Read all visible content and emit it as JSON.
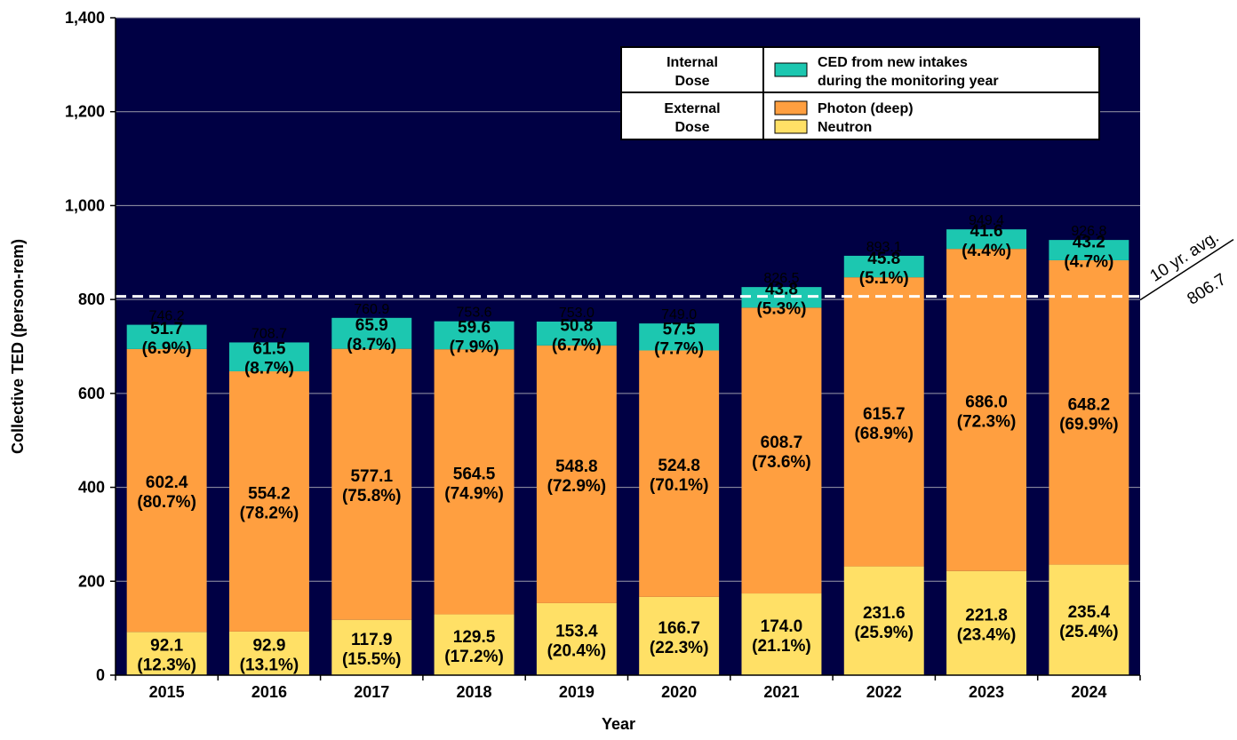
{
  "chart_data": {
    "type": "bar",
    "stacked": true,
    "title": "",
    "xlabel": "Year",
    "ylabel": "Collective TED (person-rem)",
    "ylim": [
      0,
      1400
    ],
    "yticks": [
      "0",
      "200",
      "400",
      "600",
      "800",
      "1,000",
      "1,200",
      "1,400"
    ],
    "ytick_values": [
      0,
      200,
      400,
      600,
      800,
      1000,
      1200,
      1400
    ],
    "grid": true,
    "legend_position": "top-right",
    "categories": [
      "2015",
      "2016",
      "2017",
      "2018",
      "2019",
      "2020",
      "2021",
      "2022",
      "2023",
      "2024"
    ],
    "series": [
      {
        "name": "Neutron",
        "color": "#ffe066",
        "values": [
          92.1,
          92.9,
          117.9,
          129.5,
          153.4,
          166.7,
          174.0,
          231.6,
          221.8,
          235.4
        ],
        "value_labels": [
          "92.1",
          "92.9",
          "117.9",
          "129.5",
          "153.4",
          "166.7",
          "174.0",
          "231.6",
          "221.8",
          "235.4"
        ],
        "percent_labels": [
          "(12.3%)",
          "(13.1%)",
          "(15.5%)",
          "(17.2%)",
          "(20.4%)",
          "(22.3%)",
          "(21.1%)",
          "(25.9%)",
          "(23.4%)",
          "(25.4%)"
        ]
      },
      {
        "name": "Photon (deep)",
        "color": "#ff9f40",
        "values": [
          602.4,
          554.2,
          577.1,
          564.5,
          548.8,
          524.8,
          608.7,
          615.7,
          686.0,
          648.2
        ],
        "value_labels": [
          "602.4",
          "554.2",
          "577.1",
          "564.5",
          "548.8",
          "524.8",
          "608.7",
          "615.7",
          "686.0",
          "648.2"
        ],
        "percent_labels": [
          "(80.7%)",
          "(78.2%)",
          "(75.8%)",
          "(74.9%)",
          "(72.9%)",
          "(70.1%)",
          "(73.6%)",
          "(68.9%)",
          "(72.3%)",
          "(69.9%)"
        ]
      },
      {
        "name": "CED from new intakes during the monitoring year",
        "color": "#1cc7b0",
        "values": [
          51.7,
          61.5,
          65.9,
          59.6,
          50.8,
          57.5,
          43.8,
          45.8,
          41.6,
          43.2
        ],
        "value_labels": [
          "51.7",
          "61.5",
          "65.9",
          "59.6",
          "50.8",
          "57.5",
          "43.8",
          "45.8",
          "41.6",
          "43.2"
        ],
        "percent_labels": [
          "(6.9%)",
          "(8.7%)",
          "(8.7%)",
          "(7.9%)",
          "(6.7%)",
          "(7.7%)",
          "(5.3%)",
          "(5.1%)",
          "(4.4%)",
          "(4.7%)"
        ]
      }
    ],
    "totals": [
      746.2,
      708.7,
      760.9,
      753.6,
      753.0,
      749.0,
      826.5,
      893.1,
      949.4,
      926.8
    ],
    "total_labels": [
      "746.2",
      "708.7",
      "760.9",
      "753.6",
      "753.0",
      "749.0",
      "826.5",
      "893.1",
      "949.4",
      "926.8"
    ],
    "average_line": {
      "label": "10 yr. avg.",
      "value": 806.7,
      "value_label": "806.7"
    },
    "legend": {
      "groups": [
        {
          "group_line1": "Internal",
          "group_line2": "Dose",
          "items": [
            {
              "line1": "CED from new intakes",
              "line2": "during the monitoring year",
              "color": "#1cc7b0"
            }
          ]
        },
        {
          "group_line1": "External",
          "group_line2": "Dose",
          "items": [
            {
              "line1": "Photon (deep)",
              "color": "#ff9f40"
            },
            {
              "line1": "Neutron",
              "color": "#ffe066"
            }
          ]
        }
      ]
    },
    "colors": {
      "plot_background": "#000044",
      "gridline": "#9a9aaa",
      "average_line": "#ffffff"
    }
  }
}
